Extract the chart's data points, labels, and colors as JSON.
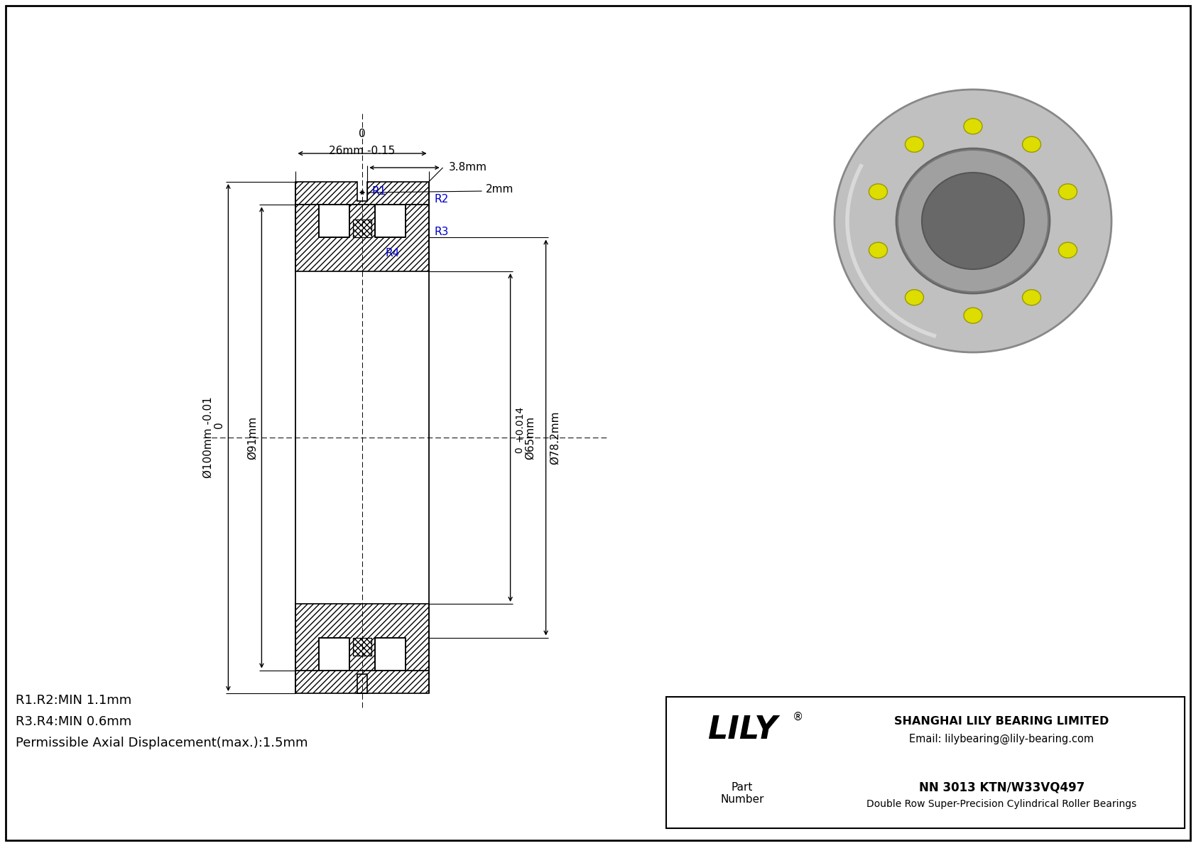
{
  "bg_color": "#ffffff",
  "title": "NN 3013 KTN/W33VQ497",
  "subtitle": "Double Row Super-Precision Cylindrical Roller Bearings",
  "company": "SHANGHAI LILY BEARING LIMITED",
  "email": "Email: lilybearing@lily-bearing.com",
  "part_label": "Part\nNumber",
  "dim_top_width": "26mm -0.15",
  "dim_top_tol": "0",
  "dim_3_8": "3.8mm",
  "dim_2": "2mm",
  "dim_od100": "Ø100mm -0.01",
  "dim_od100_tol": "0",
  "dim_od91": "Ø91mm",
  "dim_id65": "Ø65mm",
  "dim_id65_tol_plus": "+0.014",
  "dim_id65_tol_zero": "0",
  "dim_od78": "Ø78.2mm",
  "lbl_r1": "R1",
  "lbl_r2": "R2",
  "lbl_r3": "R3",
  "lbl_r4": "R4",
  "notes": [
    "R1.R2:MIN 1.1mm",
    "R3.R4:MIN 0.6mm",
    "Permissible Axial Displacement(max.):1.5mm"
  ]
}
